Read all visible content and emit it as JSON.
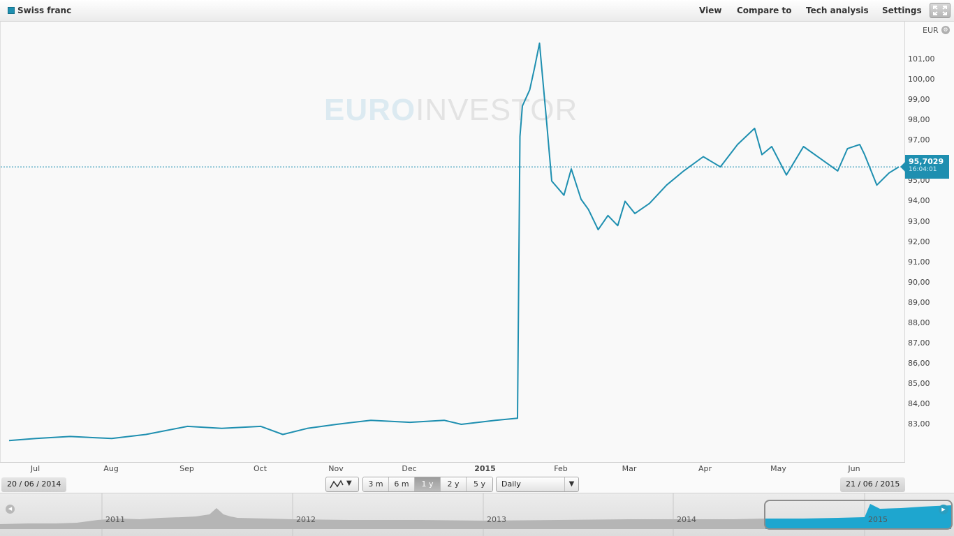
{
  "header": {
    "series_name": "Swiss franc",
    "menu": [
      "View",
      "Compare to",
      "Tech analysis",
      "Settings"
    ],
    "accent_color": "#1e8fb0"
  },
  "watermark": {
    "part1": "EURO",
    "part2": "INVESTOR"
  },
  "y_axis": {
    "currency": "EUR",
    "currency_icon": "wrench-icon",
    "ticks": [
      "83,00",
      "84,00",
      "85,00",
      "86,00",
      "87,00",
      "88,00",
      "89,00",
      "90,00",
      "91,00",
      "92,00",
      "93,00",
      "94,00",
      "95,00",
      "96,00",
      "97,00",
      "98,00",
      "99,00",
      "100,00",
      "101,00"
    ]
  },
  "last_quote": {
    "price": "95,7029",
    "time": "16:04:01"
  },
  "x_axis": {
    "labels": [
      "Jul",
      "Aug",
      "Sep",
      "Oct",
      "Nov",
      "Dec",
      "2015",
      "Feb",
      "Mar",
      "Apr",
      "May",
      "Jun"
    ]
  },
  "controls": {
    "start_date": "20 / 06 / 2014",
    "end_date": "21 / 06 / 2015",
    "chart_type_icon": "line-chart-icon",
    "ranges": [
      "3 m",
      "6 m",
      "1 y",
      "2 y",
      "5 y"
    ],
    "active_range": "1 y",
    "interval": "Daily"
  },
  "navigator": {
    "years": [
      "2011",
      "2012",
      "2013",
      "2014",
      "2015"
    ]
  },
  "chart_data": {
    "type": "line",
    "title": "Swiss franc",
    "ylabel": "EUR",
    "ylim": [
      82,
      102
    ],
    "grid": false,
    "series": [
      {
        "name": "Swiss franc",
        "x": [
          "2014-06-20",
          "2014-07-01",
          "2014-07-15",
          "2014-08-01",
          "2014-08-15",
          "2014-09-01",
          "2014-09-15",
          "2014-10-01",
          "2014-10-10",
          "2014-10-20",
          "2014-11-01",
          "2014-11-15",
          "2014-12-01",
          "2014-12-15",
          "2014-12-22",
          "2015-01-05",
          "2015-01-14",
          "2015-01-15",
          "2015-01-16",
          "2015-01-19",
          "2015-01-21",
          "2015-01-23",
          "2015-01-26",
          "2015-01-28",
          "2015-02-02",
          "2015-02-05",
          "2015-02-09",
          "2015-02-12",
          "2015-02-16",
          "2015-02-20",
          "2015-02-24",
          "2015-02-27",
          "2015-03-03",
          "2015-03-09",
          "2015-03-16",
          "2015-03-23",
          "2015-03-31",
          "2015-04-07",
          "2015-04-14",
          "2015-04-21",
          "2015-04-24",
          "2015-04-28",
          "2015-05-04",
          "2015-05-11",
          "2015-05-18",
          "2015-05-25",
          "2015-05-29",
          "2015-06-03",
          "2015-06-05",
          "2015-06-10",
          "2015-06-15",
          "2015-06-19"
        ],
        "values": [
          82.2,
          82.3,
          82.4,
          82.3,
          82.5,
          82.9,
          82.8,
          82.9,
          82.5,
          82.8,
          83.0,
          83.2,
          83.1,
          83.2,
          83.0,
          83.2,
          83.3,
          97.2,
          98.7,
          99.5,
          100.6,
          101.8,
          97.8,
          95.0,
          94.3,
          95.6,
          94.1,
          93.6,
          92.6,
          93.3,
          92.8,
          94.0,
          93.4,
          93.9,
          94.8,
          95.5,
          96.2,
          95.7,
          96.8,
          97.6,
          96.3,
          96.7,
          95.3,
          96.7,
          96.1,
          95.5,
          96.6,
          96.8,
          96.3,
          94.8,
          95.4,
          95.7
        ]
      }
    ]
  }
}
